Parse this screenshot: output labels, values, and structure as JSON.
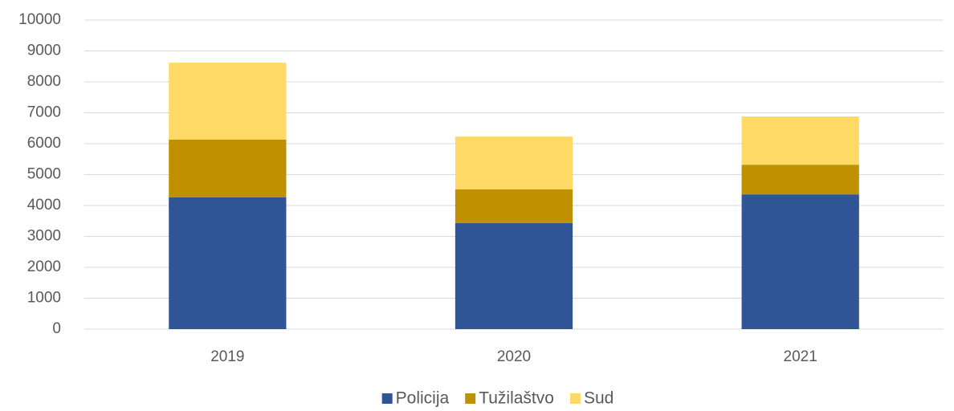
{
  "chart_data": {
    "type": "stacked_bar",
    "categories": [
      "2019",
      "2020",
      "2021"
    ],
    "series": [
      {
        "name": "Policija",
        "color": "#2f5597",
        "values": [
          4260,
          3430,
          4360
        ]
      },
      {
        "name": "Tužilaštvo",
        "color": "#bf9000",
        "values": [
          1870,
          1090,
          960
        ]
      },
      {
        "name": "Sud",
        "color": "#ffd966",
        "values": [
          2490,
          1710,
          1560
        ]
      }
    ],
    "ylim": [
      0,
      10000
    ],
    "yticks": [
      0,
      1000,
      2000,
      3000,
      4000,
      5000,
      6000,
      7000,
      8000,
      9000,
      10000
    ],
    "grid": true,
    "legend": "bottom"
  }
}
